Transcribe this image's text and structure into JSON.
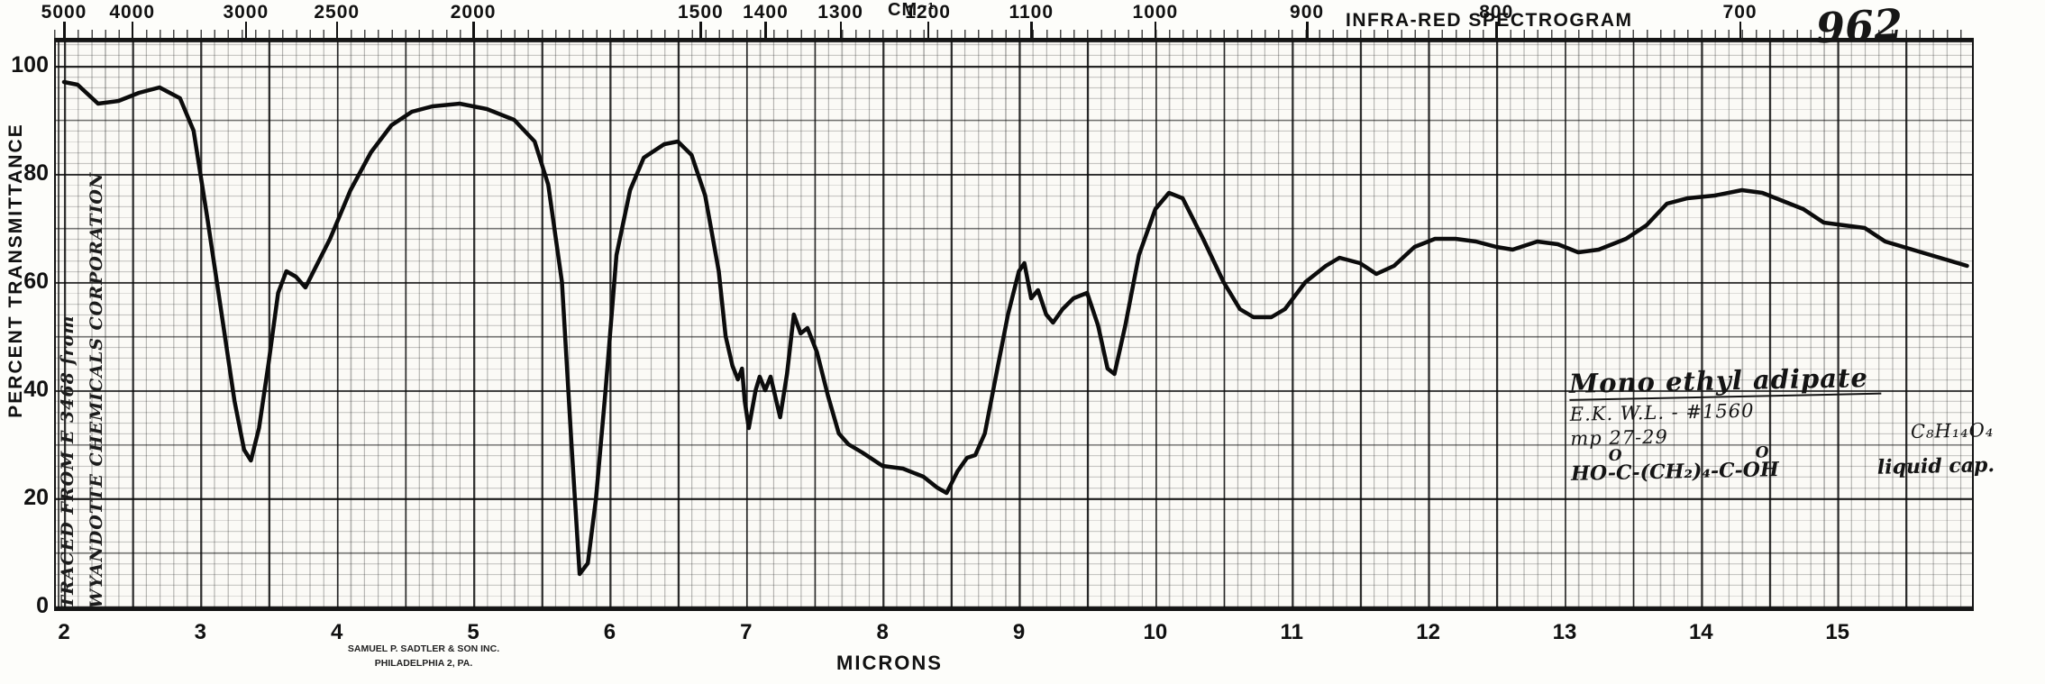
{
  "page": {
    "header_title": "INFRA-RED SPECTROGRAM",
    "sheet_number": "962",
    "top_axis_title": "CM⁻¹",
    "bottom_axis_title": "MICRONS",
    "y_axis_title": "PERCENT TRANSMITTANCE",
    "printer_line1": "SAMUEL P. SADTLER & SON INC.",
    "printer_line2": "PHILADELPHIA 2, PA.",
    "margin_note_line1": "TRACED FROM E 3468 from",
    "margin_note_line2": "WYANDOTTE CHEMICALS CORPORATION"
  },
  "annotation": {
    "title": "Mono ethyl adipate",
    "reference": "E.K. W.L. - #1560",
    "melting_point": "mp 27-29",
    "formula": "C₈H₁₄O₄",
    "structure": "HO-C-(CH₂)₄-C-OH",
    "structure_o_left": "O",
    "structure_o_right": "O",
    "sample_note": "liquid cap."
  },
  "chart_data": {
    "type": "line",
    "title": "INFRA-RED SPECTROGRAM",
    "xlabel": "MICRONS",
    "x2label": "CM⁻¹",
    "ylabel": "PERCENT TRANSMITTANCE",
    "xlim": [
      2,
      16
    ],
    "ylim": [
      0,
      100
    ],
    "grid": true,
    "x_ticks_microns": [
      2,
      3,
      4,
      5,
      6,
      7,
      8,
      9,
      10,
      11,
      12,
      13,
      14,
      15
    ],
    "x2_ticks_wavenumber_cm": [
      5000,
      4000,
      3000,
      2500,
      2000,
      1500,
      1400,
      1300,
      1200,
      1100,
      1000,
      900,
      800,
      700
    ],
    "y_ticks": [
      0,
      20,
      40,
      60,
      80,
      100
    ],
    "series": [
      {
        "name": "percent transmittance",
        "x_microns": [
          2.0,
          2.1,
          2.25,
          2.4,
          2.55,
          2.7,
          2.85,
          2.95,
          3.05,
          3.15,
          3.25,
          3.32,
          3.37,
          3.43,
          3.5,
          3.57,
          3.63,
          3.7,
          3.77,
          3.85,
          3.95,
          4.1,
          4.25,
          4.4,
          4.55,
          4.7,
          4.9,
          5.1,
          5.3,
          5.45,
          5.55,
          5.65,
          5.72,
          5.78,
          5.84,
          5.9,
          5.97,
          6.05,
          6.15,
          6.25,
          6.4,
          6.5,
          6.6,
          6.7,
          6.8,
          6.85,
          6.9,
          6.94,
          6.97,
          6.99,
          7.02,
          7.07,
          7.1,
          7.14,
          7.18,
          7.25,
          7.3,
          7.35,
          7.4,
          7.45,
          7.52,
          7.6,
          7.68,
          7.75,
          7.85,
          8.0,
          8.15,
          8.3,
          8.4,
          8.47,
          8.55,
          8.62,
          8.68,
          8.75,
          8.85,
          8.92,
          9.0,
          9.04,
          9.09,
          9.14,
          9.2,
          9.25,
          9.32,
          9.4,
          9.5,
          9.58,
          9.65,
          9.7,
          9.78,
          9.88,
          10.0,
          10.1,
          10.2,
          10.35,
          10.5,
          10.62,
          10.72,
          10.85,
          10.95,
          11.1,
          11.25,
          11.35,
          11.5,
          11.62,
          11.75,
          11.9,
          12.05,
          12.2,
          12.35,
          12.5,
          12.62,
          12.8,
          12.95,
          13.1,
          13.25,
          13.45,
          13.6,
          13.75,
          13.9,
          14.1,
          14.3,
          14.45,
          14.6,
          14.75,
          14.9,
          15.05,
          15.2,
          15.35,
          15.55,
          15.75,
          15.95
        ],
        "y_percent_transmittance": [
          97,
          96.5,
          93,
          93.5,
          95,
          96,
          94,
          88,
          72,
          55,
          38,
          29,
          27,
          33,
          45,
          58,
          62,
          61,
          59,
          63,
          68,
          77,
          84,
          89,
          91.5,
          92.5,
          93,
          92,
          90,
          86,
          78,
          60,
          30,
          6,
          8,
          20,
          40,
          65,
          77,
          83,
          85.5,
          86,
          83.5,
          76,
          62,
          50,
          44.5,
          42,
          44,
          38,
          33,
          40,
          42.5,
          40,
          42.5,
          35,
          43,
          54,
          50.5,
          51.5,
          47,
          39,
          32,
          30,
          28.5,
          26,
          25.5,
          24,
          22,
          21,
          25,
          27.5,
          28,
          32,
          45,
          54,
          62,
          63.5,
          57,
          58.5,
          54,
          52.5,
          55,
          57,
          58,
          52,
          44,
          43,
          52,
          65,
          73.5,
          76.5,
          75.5,
          68,
          60,
          55,
          53.5,
          53.5,
          55,
          60,
          63,
          64.5,
          63.5,
          61.5,
          63,
          66.5,
          68,
          68,
          67.5,
          66.5,
          66,
          67.5,
          67,
          65.5,
          66,
          68,
          70.5,
          74.5,
          75.5,
          76,
          77,
          76.5,
          75,
          73.5,
          71,
          70.5,
          70,
          67.5,
          66,
          64.5,
          63
        ]
      }
    ]
  }
}
